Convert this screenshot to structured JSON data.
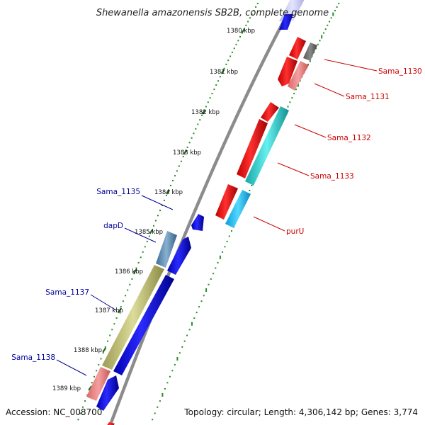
{
  "title": "Shewanella amazonensis SB2B, complete genome",
  "footer": {
    "accession": "Accession: NC_008700",
    "topology": "Topology: circular; Length: 4,306,142 bp; Genes: 3,774"
  },
  "kbp_ticks": [
    "1380 kbp",
    "1381 kbp",
    "1382 kbp",
    "1383 kbp",
    "1384 kbp",
    "1385 kbp",
    "1386 kbp",
    "1387 kbp",
    "1388 kbp",
    "1389 kbp"
  ],
  "gene_labels_right": [
    "Sama_1130",
    "Sama_1131",
    "Sama_1132",
    "Sama_1133",
    "purU"
  ],
  "gene_labels_left": [
    "Sama_1135",
    "dapD",
    "Sama_1137",
    "Sama_1138"
  ],
  "colors": {
    "forward_strand": "#ff0000",
    "reverse_strand": "#0000ff",
    "right_label": "#cc0000",
    "left_label": "#000099",
    "backbone": "#8c8c8c",
    "tick_dots": "#2a8a2a"
  }
}
